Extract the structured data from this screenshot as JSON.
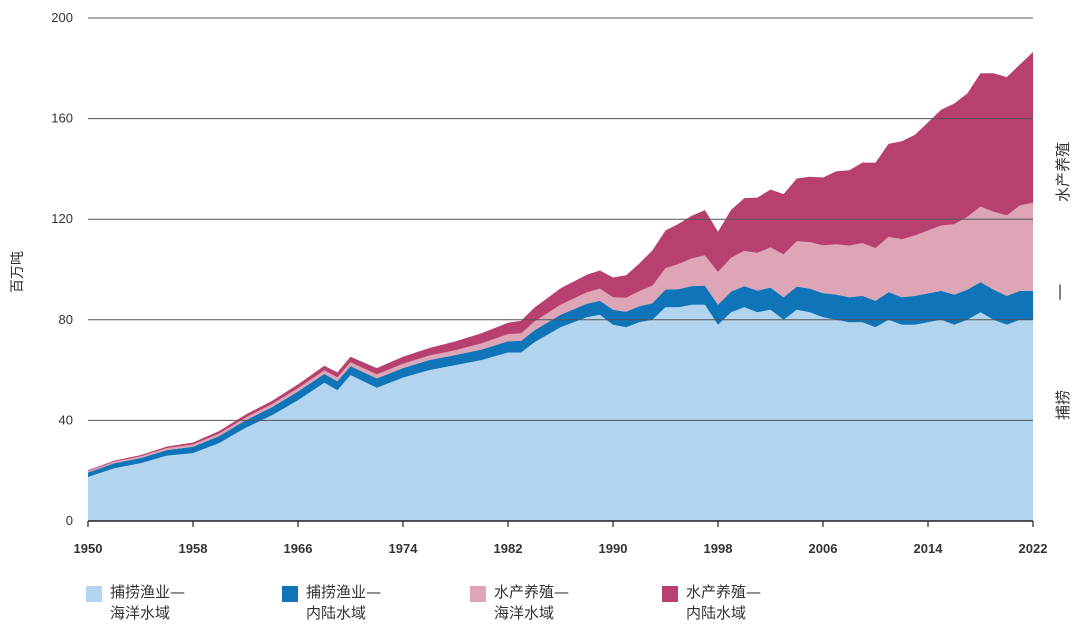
{
  "chart_data": {
    "type": "area",
    "stacked": true,
    "ylabel": "百万吨",
    "ylim": [
      0,
      200
    ],
    "yticks": [
      0,
      40,
      80,
      120,
      160,
      200
    ],
    "xlim": [
      1950,
      2022
    ],
    "xticks": [
      1950,
      1958,
      1966,
      1974,
      1982,
      1990,
      1998,
      2006,
      2014,
      2022
    ],
    "grid": "horizontal",
    "x": [
      1950,
      1952,
      1954,
      1956,
      1958,
      1960,
      1962,
      1964,
      1966,
      1968,
      1969,
      1970,
      1972,
      1974,
      1976,
      1978,
      1980,
      1982,
      1983,
      1984,
      1986,
      1988,
      1989,
      1990,
      1991,
      1992,
      1993,
      1994,
      1995,
      1996,
      1997,
      1998,
      1999,
      2000,
      2001,
      2002,
      2003,
      2004,
      2005,
      2006,
      2007,
      2008,
      2009,
      2010,
      2011,
      2012,
      2013,
      2014,
      2015,
      2016,
      2017,
      2018,
      2019,
      2020,
      2021,
      2022
    ],
    "series": [
      {
        "name": "捕捞渔业—海洋水域",
        "color": "#b3d4ef",
        "values": [
          17.5,
          21,
          23,
          26,
          27,
          31,
          37,
          42,
          48,
          55,
          52,
          58,
          53,
          57,
          60,
          62,
          64,
          67,
          67,
          71,
          77,
          81,
          82,
          78,
          77,
          79,
          80,
          85,
          85,
          86,
          86,
          78,
          83,
          85,
          83,
          84,
          80,
          84,
          83,
          81,
          80,
          79,
          79,
          77,
          80,
          78,
          78,
          79,
          80,
          78,
          80,
          83,
          80,
          78,
          80,
          80
        ]
      },
      {
        "name": "捕捞渔业—内陆水域",
        "color": "#0f75b8",
        "values": [
          1.8,
          2,
          2,
          2.2,
          2.5,
          2.8,
          3,
          3.2,
          3.5,
          3.5,
          3.6,
          3.6,
          3.7,
          3.8,
          4,
          4,
          4.2,
          4.5,
          4.6,
          4.8,
          5,
          5.4,
          5.6,
          6,
          6.2,
          6.4,
          6.6,
          7,
          7.2,
          7.4,
          7.6,
          8,
          8.2,
          8.4,
          8.6,
          8.8,
          9,
          9.2,
          9.4,
          9.6,
          10,
          10,
          10.5,
          10.5,
          11,
          11,
          11.5,
          11.5,
          11.5,
          12,
          12,
          12,
          12,
          11.5,
          11.5,
          11.5
        ]
      },
      {
        "name": "水产养殖—海洋水域",
        "color": "#dda5b6",
        "values": [
          0.5,
          0.6,
          0.7,
          0.8,
          0.9,
          1,
          1.1,
          1.2,
          1.3,
          1.4,
          1.5,
          1.5,
          1.6,
          1.7,
          1.8,
          1.9,
          2.5,
          2.8,
          3,
          3.5,
          4,
          4.5,
          4.8,
          5,
          5.5,
          6,
          7,
          8.5,
          10,
          11,
          12,
          13,
          13.5,
          14,
          15,
          16,
          17,
          18,
          18.5,
          19,
          20,
          20.5,
          21,
          21,
          22,
          23,
          24,
          25,
          26,
          28,
          29,
          30,
          31,
          32,
          34,
          35
        ]
      },
      {
        "name": "水产养殖—内陆水域",
        "color": "#b7406e",
        "values": [
          0.3,
          0.4,
          0.5,
          0.6,
          0.8,
          1,
          1.2,
          1.3,
          1.5,
          1.8,
          2,
          2.2,
          2.5,
          2.8,
          3,
          3.5,
          4,
          4.5,
          5,
          5.5,
          6.5,
          7,
          7.2,
          7.8,
          9,
          11,
          14,
          15,
          16,
          17,
          18,
          16,
          19,
          21,
          22,
          23,
          24,
          25,
          26,
          27,
          29,
          30,
          32,
          34,
          37,
          39,
          40,
          43,
          46,
          48,
          49,
          53,
          55,
          55,
          56,
          60
        ]
      }
    ],
    "side_labels": {
      "aquaculture": "水产养殖",
      "capture": "捕捞",
      "separator": "|"
    }
  },
  "legend": [
    {
      "line1": "捕捞渔业—",
      "line2": "海洋水域",
      "color": "#b3d4ef"
    },
    {
      "line1": "捕捞渔业—",
      "line2": "内陆水域",
      "color": "#0f75b8"
    },
    {
      "line1": "水产养殖—",
      "line2": "海洋水域",
      "color": "#dda5b6"
    },
    {
      "line1": "水产养殖—",
      "line2": "内陆水域",
      "color": "#b7406e"
    }
  ]
}
